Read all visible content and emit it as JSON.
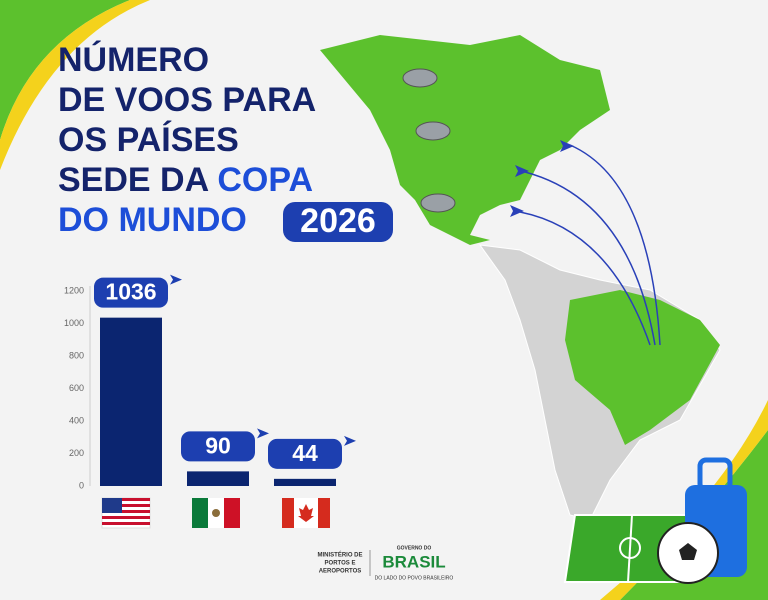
{
  "title": [
    "NÚMERO",
    "DE VOOS PARA",
    "OS PAÍSES",
    "SEDE DA",
    "COPA",
    "DO MUNDO",
    "2026"
  ],
  "chart_data": {
    "type": "bar",
    "categories": [
      null,
      null,
      null
    ],
    "values": [
      1036,
      90,
      44
    ],
    "color": "#0b2570",
    "ylim": [
      0,
      1200
    ],
    "yticks": [
      0,
      200,
      400,
      600,
      800,
      1000,
      1200
    ],
    "grid": false
  },
  "footer": {
    "ministry": [
      "MINISTÉRIO DE",
      "PORTOS E",
      "AEROPORTOS"
    ],
    "gov_top": "GOVERNO DO",
    "gov_name": "BRASIL",
    "gov_tagline": "DO LADO DO POVO BRASILEIRO"
  }
}
